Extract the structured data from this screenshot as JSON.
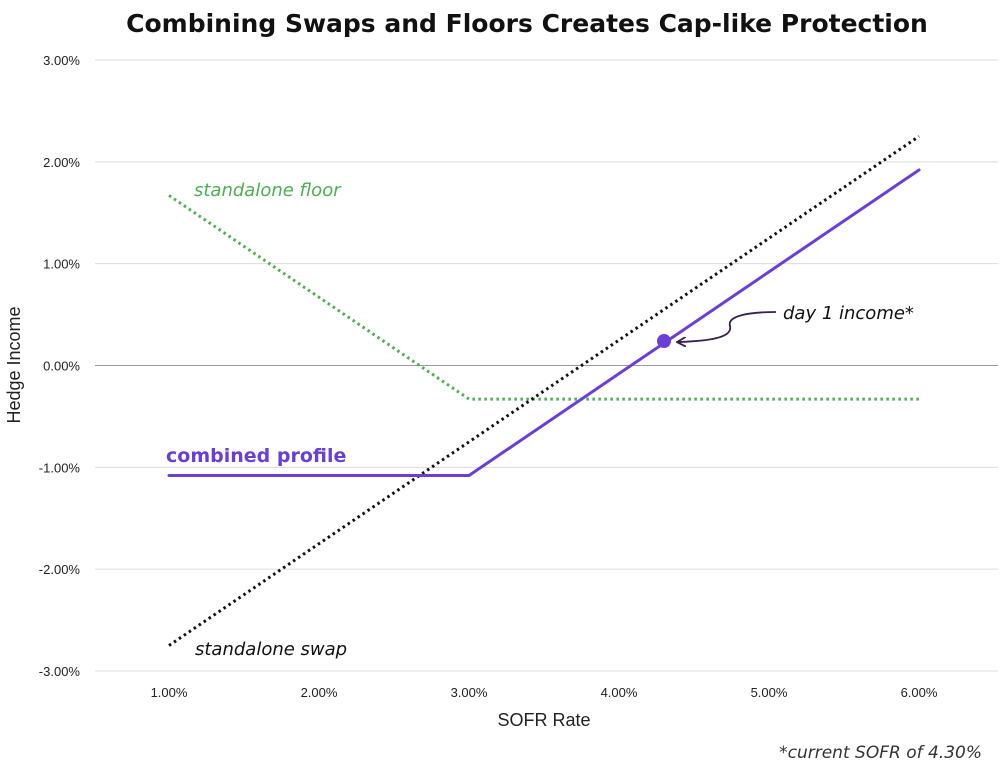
{
  "chart_data": {
    "type": "line",
    "title": "Combining Swaps and Floors Creates Cap-like Protection",
    "xlabel": "SOFR Rate",
    "ylabel": "Hedge Income",
    "xlim": [
      0.55,
      6.5
    ],
    "ylim": [
      -3.0,
      3.0
    ],
    "x_ticks": [
      "1.00%",
      "2.00%",
      "3.00%",
      "4.00%",
      "5.00%",
      "6.00%"
    ],
    "y_ticks": [
      "3.00%",
      "2.00%",
      "1.00%",
      "0.00%",
      "-1.00%",
      "-2.00%",
      "-3.00%"
    ],
    "grid": true,
    "series": [
      {
        "name": "standalone floor",
        "color": "#4caf50",
        "style": "dotted",
        "points": [
          [
            1.0,
            1.67
          ],
          [
            3.0,
            -0.33
          ],
          [
            6.0,
            -0.33
          ]
        ]
      },
      {
        "name": "standalone swap",
        "color": "#111111",
        "style": "dotted",
        "points": [
          [
            1.0,
            -2.75
          ],
          [
            6.0,
            2.25
          ]
        ]
      },
      {
        "name": "combined profile",
        "color": "#6a3fd8",
        "style": "solid",
        "points": [
          [
            1.0,
            -1.08
          ],
          [
            3.0,
            -1.08
          ],
          [
            6.0,
            1.92
          ]
        ]
      }
    ],
    "marker": {
      "label": "day 1 income*",
      "x": 4.3,
      "y": 0.24,
      "color": "#6a3fd8"
    },
    "footnote": "*current SOFR of 4.30%"
  }
}
